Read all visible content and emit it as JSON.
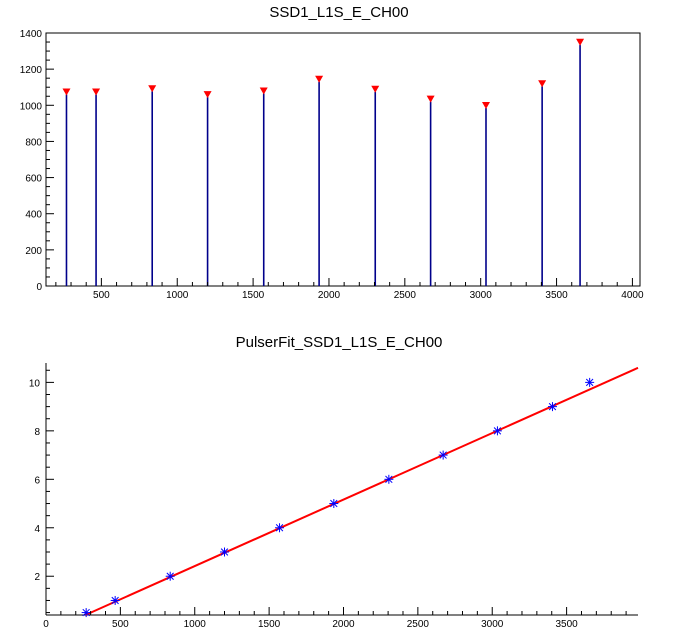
{
  "chart_data": [
    {
      "type": "bar",
      "title": "SSD1_L1S_E_CH00",
      "xlim": [
        135,
        4050
      ],
      "ylim": [
        0,
        1400
      ],
      "x_ticks": [
        500,
        1000,
        1500,
        2000,
        2500,
        3000,
        3500,
        4000
      ],
      "y_ticks": [
        0,
        200,
        400,
        600,
        800,
        1000,
        1200,
        1400
      ],
      "grid": false,
      "line_color": "#00008b",
      "marker_color": "#ff0000",
      "marker_shape": "down-triangle",
      "peaks": [
        {
          "x": 270,
          "y": 1060
        },
        {
          "x": 465,
          "y": 1060
        },
        {
          "x": 835,
          "y": 1078
        },
        {
          "x": 1200,
          "y": 1045
        },
        {
          "x": 1570,
          "y": 1065
        },
        {
          "x": 1935,
          "y": 1130
        },
        {
          "x": 2305,
          "y": 1075
        },
        {
          "x": 2670,
          "y": 1020
        },
        {
          "x": 3035,
          "y": 985
        },
        {
          "x": 3405,
          "y": 1105
        },
        {
          "x": 3655,
          "y": 1335
        }
      ]
    },
    {
      "type": "scatter",
      "title": "PulserFit_SSD1_L1S_E_CH00",
      "xlim": [
        0,
        3980
      ],
      "ylim": [
        0.4,
        10.8
      ],
      "x_ticks": [
        0,
        500,
        1000,
        1500,
        2000,
        2500,
        3000,
        3500
      ],
      "y_ticks": [
        2,
        4,
        6,
        8,
        10
      ],
      "grid": false,
      "marker_color": "#0000ff",
      "marker_shape": "asterisk",
      "fit_color": "#ff0000",
      "points": [
        {
          "x": 270,
          "y": 0.5
        },
        {
          "x": 465,
          "y": 1
        },
        {
          "x": 835,
          "y": 2
        },
        {
          "x": 1200,
          "y": 3
        },
        {
          "x": 1570,
          "y": 4
        },
        {
          "x": 1935,
          "y": 5
        },
        {
          "x": 2305,
          "y": 6
        },
        {
          "x": 2670,
          "y": 7
        },
        {
          "x": 3035,
          "y": 8
        },
        {
          "x": 3405,
          "y": 9
        },
        {
          "x": 3655,
          "y": 10
        }
      ],
      "fit_line": {
        "x": [
          265,
          3980
        ],
        "y": [
          0.4,
          10.6
        ]
      }
    }
  ]
}
